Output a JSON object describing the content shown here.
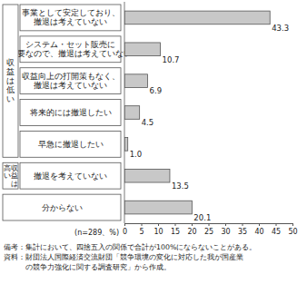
{
  "chart_data": {
    "type": "bar",
    "orientation": "horizontal",
    "categories": [
      "事業として安定しており、\n撤退は考えていない",
      "システム・セット販売に\n必要なので、撤退は考えていない",
      "収益向上の打開策もなく、\n撤退は考えていない",
      "将来的には撤退したい",
      "早急に撤退したい",
      "撤退を考えていない",
      "分からない"
    ],
    "category_groups": [
      "収益は低い",
      "収益は低い",
      "収益は低い",
      "収益は低い",
      "収益は低い",
      "収益は\n高い",
      null
    ],
    "values": [
      43.3,
      10.7,
      6.9,
      4.5,
      1.0,
      13.5,
      20.1
    ],
    "value_labels": [
      "43.3",
      "10.7",
      "6.9",
      "4.5",
      "1.0",
      "13.5",
      "20.1"
    ],
    "data_labels": true,
    "color": "#c8c8c8",
    "xlabel": "(n=289、%)",
    "xlim": [
      0,
      50
    ],
    "xticks": [
      0,
      5,
      10,
      15,
      20,
      25,
      30,
      35,
      40,
      45,
      50
    ],
    "grid": false,
    "annotations": [
      "備考：集計において、四捨五入の関係で合計が100%にならないことがある。",
      "資料：財団法人国際経済交流財団「競争環境の変化に対応した我が国産業\nの競争力強化に関する調査研究」から作成。"
    ]
  }
}
